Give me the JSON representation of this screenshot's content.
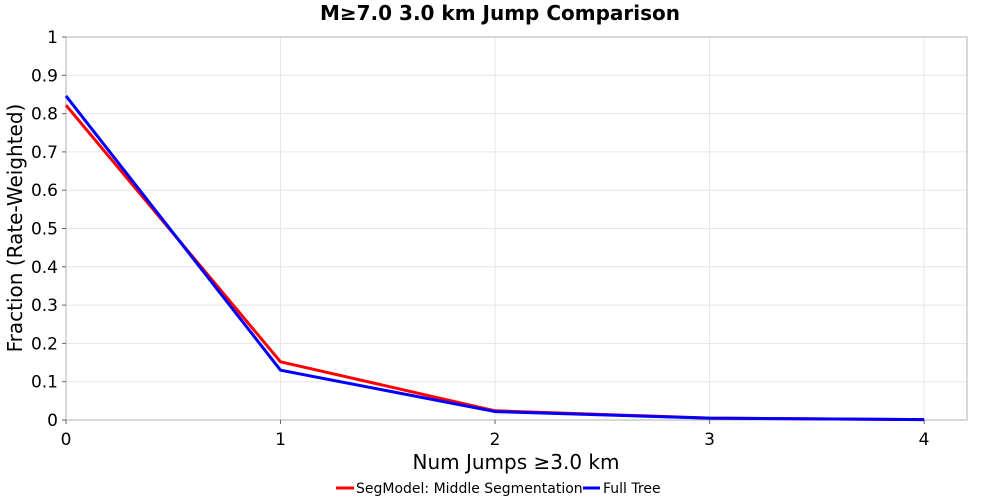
{
  "chart_data": {
    "type": "line",
    "title": "M≥7.0 3.0 km Jump Comparison",
    "xlabel": "Num Jumps ≥3.0 km",
    "ylabel": "Fraction (Rate-Weighted)",
    "xlim": [
      0,
      4.2
    ],
    "ylim": [
      0,
      1
    ],
    "xticks": [
      "0",
      "1",
      "2",
      "3",
      "4"
    ],
    "yticks": [
      "0",
      "0.1",
      "0.2",
      "0.3",
      "0.4",
      "0.5",
      "0.6",
      "0.7",
      "0.8",
      "0.9",
      "1"
    ],
    "grid": true,
    "legend_position": "bottom",
    "x": [
      0,
      1,
      2,
      3,
      4
    ],
    "series": [
      {
        "name": "SegModel: Middle Segmentation",
        "color": "#ff0000",
        "values": [
          0.822,
          0.152,
          0.024,
          0.005,
          0.001
        ]
      },
      {
        "name": "Full Tree",
        "color": "#0000ff",
        "values": [
          0.846,
          0.13,
          0.022,
          0.005,
          0.001
        ]
      }
    ]
  }
}
